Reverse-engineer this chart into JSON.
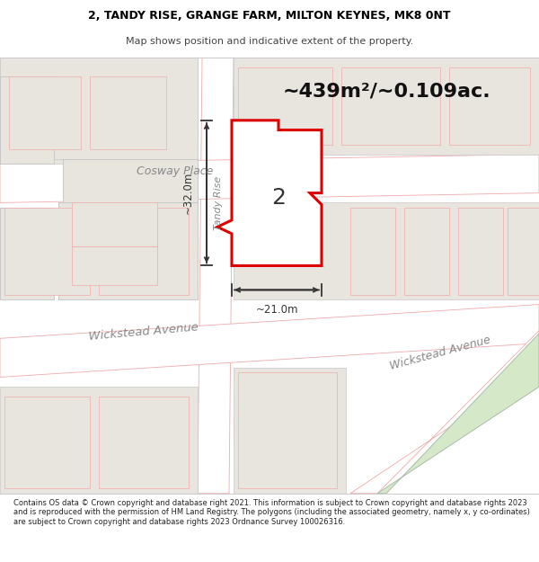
{
  "title_line1": "2, TANDY RISE, GRANGE FARM, MILTON KEYNES, MK8 0NT",
  "title_line2": "Map shows position and indicative extent of the property.",
  "area_text": "~439m²/~0.109ac.",
  "label_number": "2",
  "dim_width": "~21.0m",
  "dim_height": "~32.0m",
  "road_cosway": "Cosway Place",
  "road_tandy": "Tandy Rise",
  "road_wickstead1": "Wickstead Avenue",
  "road_wickstead2": "Wickstead Avenue",
  "footer_text": "Contains OS data © Crown copyright and database right 2021. This information is subject to Crown copyright and database rights 2023 and is reproduced with the permission of HM Land Registry. The polygons (including the associated geometry, namely x, y co-ordinates) are subject to Crown copyright and database rights 2023 Ordnance Survey 100026316.",
  "map_bg": "#f7f5f2",
  "plot_fill": "#ffffff",
  "plot_stroke": "#dd0000",
  "road_fill": "#ffffff",
  "road_stroke": "#f0aaaa",
  "building_fill": "#e8e4de",
  "building_stroke": "#c8c8c8",
  "building_stroke_thin": "#ddaaaa",
  "dim_color": "#333333",
  "text_road_color": "#888888",
  "header_bg": "#ffffff",
  "footer_bg": "#ffffff",
  "green_fill": "#d5e8c8",
  "green_stroke": "#aabbaa"
}
